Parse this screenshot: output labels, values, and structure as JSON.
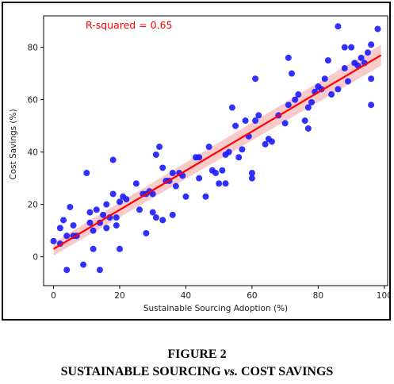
{
  "caption": {
    "figure_label": "FIGURE 2",
    "title_part1": "SUSTAINABLE SOURCING ",
    "title_vs": "vs.",
    "title_part2": " COST SAVINGS"
  },
  "chart_data": {
    "type": "scatter",
    "title": "",
    "xlabel": "Sustainable Sourcing Adoption (%)",
    "ylabel": "Cost Savings (%)",
    "xlim": [
      -3,
      101
    ],
    "ylim": [
      -11,
      92
    ],
    "xticks": [
      0,
      20,
      40,
      60,
      80,
      100
    ],
    "yticks": [
      0,
      20,
      40,
      60,
      80
    ],
    "grid": false,
    "annotation": "R-squared = 0.65",
    "colors": {
      "points": "#1a1aff",
      "fit_line": "#ff0000",
      "band": "#f4a6a6",
      "annotation": "#ff0000"
    },
    "fit_line": {
      "x": [
        0,
        99
      ],
      "y": [
        3,
        77
      ]
    },
    "confidence_band_halfwidth": 2.5,
    "points": [
      [
        0,
        6
      ],
      [
        2,
        5
      ],
      [
        2,
        11
      ],
      [
        3,
        14
      ],
      [
        4,
        -5
      ],
      [
        4,
        8
      ],
      [
        5,
        19
      ],
      [
        6,
        12
      ],
      [
        6,
        8
      ],
      [
        7,
        8
      ],
      [
        9,
        -3
      ],
      [
        10,
        32
      ],
      [
        11,
        17
      ],
      [
        11,
        13
      ],
      [
        12,
        3
      ],
      [
        12,
        10
      ],
      [
        13,
        18
      ],
      [
        14,
        -5
      ],
      [
        14,
        13
      ],
      [
        15,
        16
      ],
      [
        16,
        11
      ],
      [
        17,
        15
      ],
      [
        18,
        24
      ],
      [
        18,
        37
      ],
      [
        19,
        15
      ],
      [
        19,
        12
      ],
      [
        20,
        21
      ],
      [
        20,
        3
      ],
      [
        21,
        23
      ],
      [
        25,
        28
      ],
      [
        26,
        18
      ],
      [
        27,
        24
      ],
      [
        28,
        9
      ],
      [
        29,
        25
      ],
      [
        30,
        17
      ],
      [
        30,
        24
      ],
      [
        31,
        39
      ],
      [
        31,
        15
      ],
      [
        32,
        42
      ],
      [
        33,
        34
      ],
      [
        33,
        14
      ],
      [
        34,
        29
      ],
      [
        35,
        29
      ],
      [
        36,
        16
      ],
      [
        36,
        32
      ],
      [
        37,
        27
      ],
      [
        38,
        32
      ],
      [
        40,
        23
      ],
      [
        43,
        38
      ],
      [
        44,
        30
      ],
      [
        44,
        38
      ],
      [
        46,
        23
      ],
      [
        47,
        42
      ],
      [
        49,
        32
      ],
      [
        50,
        28
      ],
      [
        51,
        33
      ],
      [
        52,
        39
      ],
      [
        52,
        28
      ],
      [
        53,
        40
      ],
      [
        54,
        57
      ],
      [
        55,
        50
      ],
      [
        56,
        38
      ],
      [
        57,
        41
      ],
      [
        59,
        46
      ],
      [
        60,
        30
      ],
      [
        60,
        32
      ],
      [
        61,
        68
      ],
      [
        61,
        52
      ],
      [
        62,
        54
      ],
      [
        64,
        43
      ],
      [
        66,
        44
      ],
      [
        68,
        54
      ],
      [
        70,
        51
      ],
      [
        71,
        76
      ],
      [
        71,
        58
      ],
      [
        72,
        70
      ],
      [
        73,
        60
      ],
      [
        74,
        62
      ],
      [
        76,
        52
      ],
      [
        77,
        57
      ],
      [
        77,
        49
      ],
      [
        78,
        59
      ],
      [
        80,
        65
      ],
      [
        81,
        64
      ],
      [
        82,
        68
      ],
      [
        83,
        75
      ],
      [
        84,
        62
      ],
      [
        86,
        64
      ],
      [
        86,
        88
      ],
      [
        88,
        80
      ],
      [
        89,
        67
      ],
      [
        90,
        80
      ],
      [
        91,
        74
      ],
      [
        92,
        73
      ],
      [
        93,
        76
      ],
      [
        94,
        74
      ],
      [
        95,
        78
      ],
      [
        96,
        58
      ],
      [
        96,
        81
      ],
      [
        96,
        68
      ],
      [
        98,
        87
      ],
      [
        88,
        72
      ],
      [
        79,
        63
      ],
      [
        58,
        52
      ],
      [
        48,
        33
      ],
      [
        28,
        24
      ],
      [
        22,
        22
      ],
      [
        16,
        20
      ],
      [
        65,
        45
      ],
      [
        39,
        31
      ]
    ]
  }
}
